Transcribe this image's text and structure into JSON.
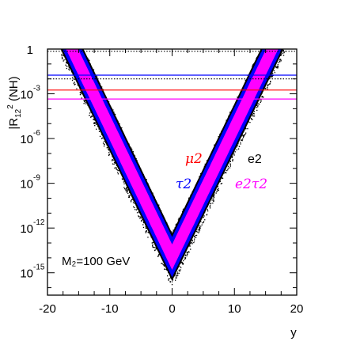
{
  "chart_data": {
    "type": "scatter",
    "xlabel": "y",
    "ylabel": "|R",
    "ylabel_sub": "12",
    "ylabel_sup": "2",
    "ylabel_suffix": " (NH)",
    "xlim": [
      -20,
      20
    ],
    "ylim_log10": [
      -16.5,
      0
    ],
    "x_ticks": [
      {
        "value": -20,
        "label": "-20"
      },
      {
        "value": -10,
        "label": "-10"
      },
      {
        "value": 0,
        "label": "0"
      },
      {
        "value": 10,
        "label": "10"
      },
      {
        "value": 20,
        "label": "20"
      }
    ],
    "y_ticks": [
      {
        "value": 0,
        "base": "1",
        "exp": ""
      },
      {
        "value": -3,
        "base": "10",
        "exp": "-3"
      },
      {
        "value": -6,
        "base": "10",
        "exp": "-6"
      },
      {
        "value": -9,
        "base": "10",
        "exp": "-9"
      },
      {
        "value": -12,
        "base": "10",
        "exp": "-12"
      },
      {
        "value": -15,
        "base": "10",
        "exp": "-15"
      }
    ],
    "envelope": {
      "slope_log10_per_unit_y": 0.8686,
      "black_lower_min_log10": -16.0,
      "black_upper_min_log10": -12.3,
      "blue_lower_min_log10": -15.3,
      "blue_upper_min_log10": -12.6,
      "magenta_lower_min_log10": -14.8,
      "magenta_upper_min_log10": -13.1
    },
    "series": [
      {
        "name": "e2",
        "color": "#000000"
      },
      {
        "name": "τ2",
        "color": "#0000ff"
      },
      {
        "name": "e2τ2",
        "color": "#ff00ff"
      },
      {
        "name": "μ2",
        "color": "#ff0000"
      }
    ],
    "hlines": [
      {
        "series": "e2",
        "log10": -0.15,
        "color": "#000000",
        "style": "dotted"
      },
      {
        "series": "τ2",
        "log10": -1.75,
        "color": "#0000ff",
        "style": "solid"
      },
      {
        "series": "e2",
        "log10": -2.0,
        "color": "#000000",
        "style": "dotted"
      },
      {
        "series": "μ2",
        "log10": -2.75,
        "color": "#ff0000",
        "style": "solid"
      },
      {
        "series": "e2τ2",
        "log10": -3.35,
        "color": "#ff00ff",
        "style": "solid"
      }
    ],
    "annotations": {
      "mu2": {
        "text": "μ2",
        "color": "#ff0000"
      },
      "e2": {
        "text": "e2",
        "color": "#000000"
      },
      "tau2": {
        "text": "τ2",
        "color": "#0000ff"
      },
      "e2tau2": {
        "text": "e2τ2",
        "color": "#ff00ff"
      },
      "mass": {
        "text": "M₂=100 GeV",
        "color": "#000000"
      }
    },
    "grid": false
  }
}
